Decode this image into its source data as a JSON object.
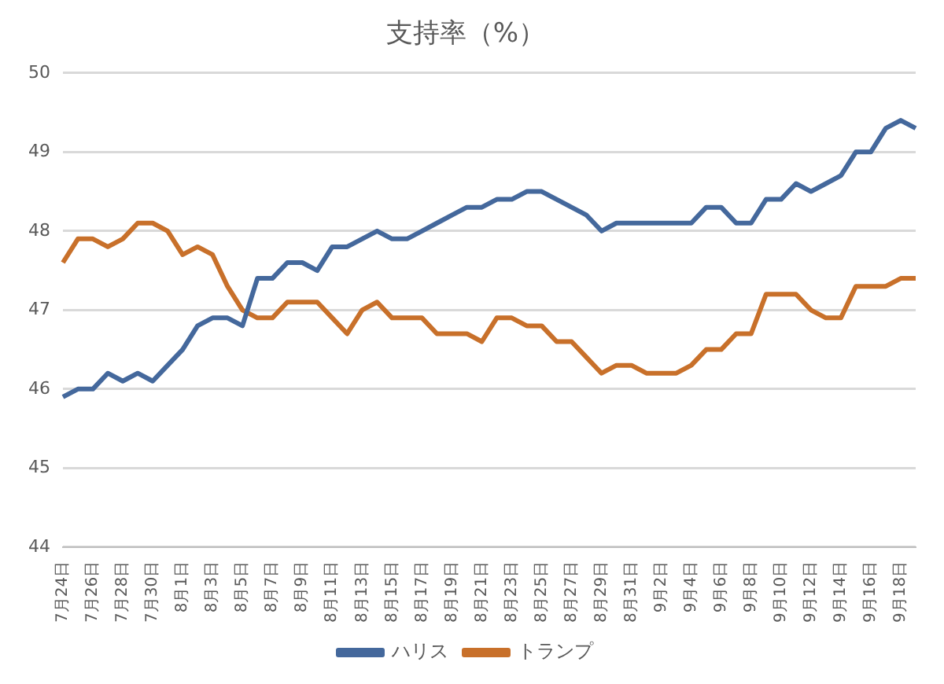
{
  "chart_data": {
    "type": "line",
    "title": "支持率（%）",
    "categories": [
      "7月24日",
      null,
      "7月26日",
      null,
      "7月28日",
      null,
      "7月30日",
      null,
      "8月1日",
      null,
      "8月3日",
      null,
      "8月5日",
      null,
      "8月7日",
      null,
      "8月9日",
      null,
      "8月11日",
      null,
      "8月13日",
      null,
      "8月15日",
      null,
      "8月17日",
      null,
      "8月19日",
      null,
      "8月21日",
      null,
      "8月23日",
      null,
      "8月25日",
      null,
      "8月27日",
      null,
      "8月29日",
      null,
      "8月31日",
      null,
      "9月2日",
      null,
      "9月4日",
      null,
      "9月6日",
      null,
      "9月8日",
      null,
      "9月10日",
      null,
      "9月12日",
      null,
      "9月14日",
      null,
      "9月16日",
      null,
      "9月18日",
      null
    ],
    "series": [
      {
        "name": "ハリス",
        "color": "#44689c",
        "values": [
          45.9,
          46.0,
          46.0,
          46.2,
          46.1,
          46.2,
          46.1,
          46.3,
          46.5,
          46.8,
          46.9,
          46.9,
          46.8,
          47.4,
          47.4,
          47.6,
          47.6,
          47.5,
          47.8,
          47.8,
          47.9,
          48.0,
          47.9,
          47.9,
          48.0,
          48.1,
          48.2,
          48.3,
          48.3,
          48.4,
          48.4,
          48.5,
          48.5,
          48.4,
          48.3,
          48.2,
          48.0,
          48.1,
          48.1,
          48.1,
          48.1,
          48.1,
          48.1,
          48.3,
          48.3,
          48.1,
          48.1,
          48.4,
          48.4,
          48.6,
          48.5,
          48.6,
          48.7,
          49.0,
          49.0,
          49.3,
          49.4,
          49.3
        ]
      },
      {
        "name": "トランプ",
        "color": "#c8702a",
        "values": [
          47.6,
          47.9,
          47.9,
          47.8,
          47.9,
          48.1,
          48.1,
          48.0,
          47.7,
          47.8,
          47.7,
          47.3,
          47.0,
          46.9,
          46.9,
          47.1,
          47.1,
          47.1,
          46.9,
          46.7,
          47.0,
          47.1,
          46.9,
          46.9,
          46.9,
          46.7,
          46.7,
          46.7,
          46.6,
          46.9,
          46.9,
          46.8,
          46.8,
          46.6,
          46.6,
          46.4,
          46.2,
          46.3,
          46.3,
          46.2,
          46.2,
          46.2,
          46.3,
          46.5,
          46.5,
          46.7,
          46.7,
          47.2,
          47.2,
          47.2,
          47.0,
          46.9,
          46.9,
          47.3,
          47.3,
          47.3,
          47.4,
          47.4
        ]
      }
    ],
    "ylim": [
      44,
      50
    ],
    "yticks": [
      44,
      45,
      46,
      47,
      48,
      49,
      50
    ],
    "grid": "y",
    "legend": "bottom",
    "marker": "none",
    "line_style": "solid"
  }
}
